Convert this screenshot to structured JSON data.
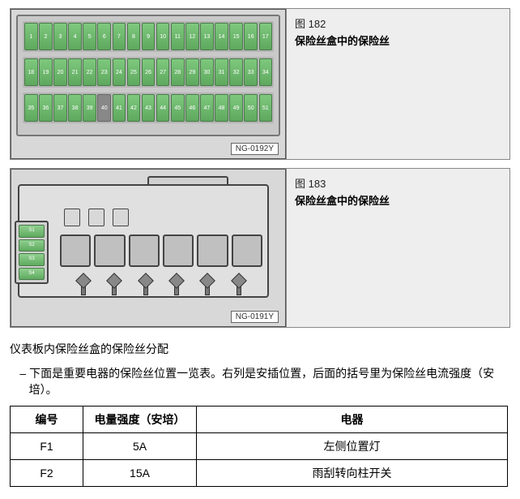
{
  "figure1": {
    "num": "图 182",
    "title": "保险丝盒中的保险丝",
    "code": "NG-0192Y",
    "fusebox": {
      "background": "#d8d8d8",
      "fuse_color": "#7fc97f",
      "rows": [
        {
          "type": "row",
          "start": 1,
          "end": 17,
          "empty": []
        },
        {
          "type": "row",
          "start": 18,
          "end": 34,
          "empty": []
        },
        {
          "type": "row",
          "start": 35,
          "end": 51,
          "empty": [
            40
          ]
        }
      ]
    }
  },
  "figure2": {
    "num": "图 183",
    "title": "保险丝盒中的保险丝",
    "code": "NG-0191Y",
    "side_labels": [
      "S1",
      "S2",
      "S3",
      "S4"
    ],
    "large_fuse_count": 6,
    "bolt_count": 6,
    "small_square_count": 3
  },
  "section": {
    "title": "仪表板内保险丝盒的保险丝分配",
    "desc": "– 下面是重要电器的保险丝位置一览表。右列是安插位置，后面的括号里为保险丝电流强度（安培）。"
  },
  "table": {
    "columns": [
      "编号",
      "电量强度（安培）",
      "电器"
    ],
    "rows": [
      [
        "F1",
        "5A",
        "左侧位置灯"
      ],
      [
        "F2",
        "15A",
        "雨刮转向柱开关"
      ]
    ],
    "border_color": "#000000",
    "font_size": 14
  }
}
